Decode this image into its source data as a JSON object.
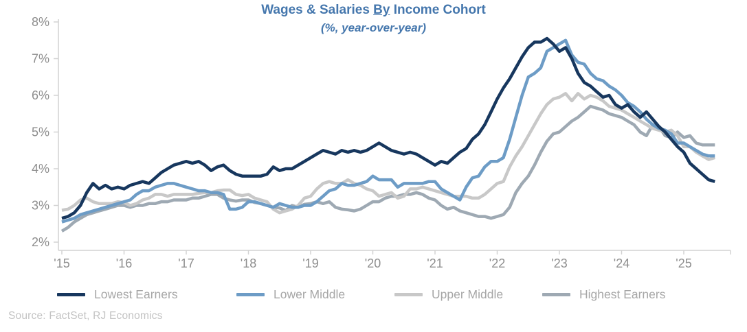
{
  "title": {
    "prefix": "Wages & Salaries ",
    "underlined": "By",
    "suffix": " Income Cohort",
    "subtitle": "(%, year-over-year)",
    "color": "#4577ad"
  },
  "source": "Source: FactSet, RJ Economics",
  "style": {
    "axis_text_color": "#8e8e8e",
    "axis_line_color": "#d2d2d2",
    "legend_text_color": "#a6a6a6"
  },
  "chart_data": {
    "type": "line",
    "title": "Wages & Salaries By Income Cohort",
    "subtitle": "(%, year-over-year)",
    "xlabel": "",
    "ylabel": "",
    "grid": false,
    "legend_position": "bottom",
    "ylim": [
      2,
      8
    ],
    "y_ticks": [
      2,
      3,
      4,
      5,
      6,
      7,
      8
    ],
    "y_tick_labels": [
      "2%",
      "3%",
      "4%",
      "5%",
      "6%",
      "7%",
      "8%"
    ],
    "x_tick_years": [
      2015,
      2016,
      2017,
      2018,
      2019,
      2020,
      2021,
      2022,
      2023,
      2024,
      2025
    ],
    "x_tick_labels": [
      "'15",
      "'16",
      "'17",
      "'18",
      "'19",
      "'20",
      "'21",
      "'22",
      "'23",
      "'24",
      "'25"
    ],
    "x_start": 2015.0,
    "x_step": 0.1,
    "series": [
      {
        "name": "Lowest Earners",
        "color": "#17375e",
        "values": [
          2.65,
          2.7,
          2.8,
          3.0,
          3.35,
          3.6,
          3.45,
          3.55,
          3.45,
          3.5,
          3.45,
          3.55,
          3.6,
          3.65,
          3.6,
          3.75,
          3.9,
          4.0,
          4.1,
          4.15,
          4.2,
          4.15,
          4.2,
          4.1,
          3.95,
          4.05,
          4.1,
          3.95,
          3.85,
          3.8,
          3.8,
          3.8,
          3.8,
          3.85,
          4.05,
          3.95,
          4.0,
          4.0,
          4.1,
          4.2,
          4.3,
          4.4,
          4.5,
          4.45,
          4.4,
          4.5,
          4.45,
          4.5,
          4.45,
          4.5,
          4.6,
          4.7,
          4.6,
          4.5,
          4.45,
          4.4,
          4.45,
          4.4,
          4.3,
          4.2,
          4.1,
          4.2,
          4.15,
          4.3,
          4.45,
          4.55,
          4.8,
          4.95,
          5.2,
          5.55,
          5.9,
          6.2,
          6.45,
          6.75,
          7.05,
          7.3,
          7.45,
          7.45,
          7.55,
          7.4,
          7.2,
          7.3,
          7.0,
          6.6,
          6.35,
          6.25,
          6.1,
          5.95,
          6.0,
          5.75,
          5.65,
          5.75,
          5.55,
          5.4,
          5.55,
          5.35,
          5.15,
          5.0,
          4.8,
          4.6,
          4.45,
          4.15,
          4.0,
          3.85,
          3.7,
          3.65
        ]
      },
      {
        "name": "Lower Middle",
        "color": "#6d9cc6",
        "values": [
          2.55,
          2.6,
          2.65,
          2.75,
          2.8,
          2.85,
          2.9,
          2.95,
          3.0,
          3.05,
          3.1,
          3.15,
          3.3,
          3.4,
          3.4,
          3.5,
          3.55,
          3.6,
          3.6,
          3.55,
          3.5,
          3.45,
          3.4,
          3.4,
          3.35,
          3.35,
          3.3,
          2.9,
          2.9,
          2.95,
          3.1,
          3.1,
          3.05,
          3.0,
          2.95,
          3.05,
          3.0,
          2.95,
          2.95,
          3.0,
          3.0,
          3.1,
          3.25,
          3.4,
          3.45,
          3.6,
          3.55,
          3.55,
          3.6,
          3.65,
          3.8,
          3.7,
          3.7,
          3.7,
          3.5,
          3.6,
          3.6,
          3.6,
          3.6,
          3.65,
          3.65,
          3.45,
          3.35,
          3.25,
          3.15,
          3.5,
          3.75,
          3.8,
          4.05,
          4.2,
          4.2,
          4.3,
          4.8,
          5.4,
          6.0,
          6.5,
          6.6,
          6.75,
          7.2,
          7.3,
          7.4,
          7.5,
          7.1,
          6.9,
          6.85,
          6.6,
          6.45,
          6.4,
          6.25,
          6.15,
          6.0,
          5.8,
          5.7,
          5.55,
          5.35,
          5.2,
          5.1,
          5.05,
          4.95,
          4.7,
          4.7,
          4.6,
          4.5,
          4.4,
          4.35,
          4.35
        ]
      },
      {
        "name": "Upper Middle",
        "color": "#c8c8c8",
        "values": [
          2.87,
          2.9,
          3.0,
          3.15,
          3.2,
          3.1,
          3.05,
          3.05,
          3.05,
          3.1,
          3.08,
          3.0,
          3.05,
          3.15,
          3.2,
          3.3,
          3.3,
          3.25,
          3.3,
          3.3,
          3.3,
          3.3,
          3.33,
          3.35,
          3.35,
          3.4,
          3.42,
          3.42,
          3.3,
          3.27,
          3.3,
          3.2,
          3.15,
          3.1,
          2.9,
          2.8,
          2.85,
          2.9,
          3.0,
          3.2,
          3.25,
          3.45,
          3.6,
          3.65,
          3.6,
          3.6,
          3.7,
          3.6,
          3.55,
          3.45,
          3.4,
          3.25,
          3.3,
          3.35,
          3.2,
          3.25,
          3.45,
          3.45,
          3.5,
          3.45,
          3.4,
          3.35,
          3.3,
          3.25,
          3.25,
          3.25,
          3.2,
          3.2,
          3.3,
          3.45,
          3.6,
          3.65,
          4.05,
          4.35,
          4.6,
          4.9,
          5.2,
          5.5,
          5.75,
          5.9,
          5.95,
          6.05,
          5.85,
          6.05,
          5.9,
          6.0,
          5.95,
          5.85,
          5.7,
          5.65,
          5.6,
          5.5,
          5.4,
          5.3,
          5.2,
          5.1,
          5.05,
          5.0,
          5.05,
          4.9,
          4.6,
          4.6,
          4.45,
          4.35,
          4.25,
          4.3
        ]
      },
      {
        "name": "Highest Earners",
        "color": "#9ea9b3",
        "values": [
          2.3,
          2.4,
          2.55,
          2.65,
          2.75,
          2.8,
          2.85,
          2.9,
          2.95,
          3.0,
          3.0,
          2.95,
          3.0,
          3.0,
          3.05,
          3.05,
          3.1,
          3.1,
          3.15,
          3.15,
          3.15,
          3.2,
          3.2,
          3.25,
          3.3,
          3.3,
          3.2,
          3.15,
          3.12,
          3.15,
          3.15,
          3.08,
          3.05,
          3.0,
          2.95,
          2.93,
          2.86,
          3.0,
          2.95,
          3.03,
          3.05,
          3.1,
          3.05,
          3.1,
          2.95,
          2.9,
          2.88,
          2.85,
          2.9,
          3.0,
          3.1,
          3.1,
          3.2,
          3.25,
          3.25,
          3.3,
          3.3,
          3.35,
          3.3,
          3.2,
          3.15,
          3.0,
          2.9,
          2.95,
          2.85,
          2.8,
          2.75,
          2.7,
          2.7,
          2.65,
          2.7,
          2.75,
          2.95,
          3.35,
          3.6,
          3.8,
          4.1,
          4.45,
          4.75,
          4.95,
          5.0,
          5.15,
          5.3,
          5.4,
          5.55,
          5.7,
          5.65,
          5.6,
          5.5,
          5.45,
          5.4,
          5.3,
          5.2,
          5.0,
          4.9,
          5.2,
          5.15,
          4.9,
          4.85,
          5.0,
          4.85,
          4.9,
          4.7,
          4.65,
          4.65,
          4.65
        ]
      }
    ]
  }
}
